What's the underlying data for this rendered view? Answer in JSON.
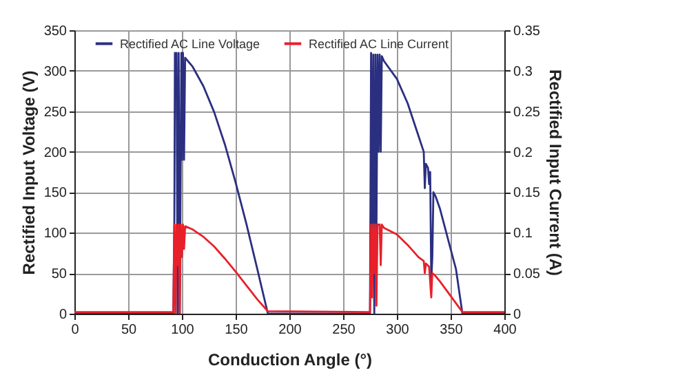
{
  "chart_data": {
    "type": "line",
    "xlabel": "Conduction Angle (°)",
    "ylabel": "Rectified Input Voltage (V)",
    "y2label": "Rectified Input Current (A)",
    "xlim": [
      0,
      400
    ],
    "xticks": [
      0,
      50,
      100,
      150,
      200,
      250,
      300,
      350,
      400
    ],
    "ylim": [
      0,
      350
    ],
    "yticks": [
      0,
      50,
      100,
      150,
      200,
      250,
      300,
      350
    ],
    "y2lim": [
      0,
      0.35
    ],
    "y2ticks": [
      0,
      0.05,
      0.1,
      0.15,
      0.2,
      0.25,
      0.3,
      0.35
    ],
    "grid": true,
    "legend": "top",
    "marker": "none",
    "line_style": "solid",
    "series": [
      {
        "name": "Rectified AC Line Voltage",
        "color": "#2b2f80",
        "x": [
          0,
          92,
          93,
          93.5,
          94,
          95,
          96,
          97,
          98,
          99.5,
          100,
          101,
          102,
          103,
          110,
          120,
          130,
          140,
          150,
          160,
          170,
          180,
          275,
          276,
          277,
          278,
          279,
          280,
          281,
          282,
          283,
          284,
          285,
          286,
          288,
          300,
          310,
          320,
          325,
          326,
          327,
          329,
          330,
          331,
          332,
          333,
          334,
          336,
          340,
          350,
          355,
          361,
          400
        ],
        "values": [
          0,
          0,
          120,
          322,
          280,
          322,
          0,
          322,
          0,
          322,
          190,
          322,
          190,
          316,
          305,
          281,
          249,
          209,
          162,
          111,
          56,
          0,
          0,
          322,
          100,
          320,
          0,
          320,
          100,
          320,
          200,
          320,
          200,
          318,
          312,
          290,
          260,
          220,
          200,
          155,
          185,
          180,
          160,
          175,
          40,
          70,
          150,
          145,
          130,
          80,
          55,
          0,
          0
        ]
      },
      {
        "name": "Rectified AC Line Current",
        "color": "#e8202a",
        "axis": "y2",
        "x": [
          0,
          92,
          93,
          94,
          95,
          96,
          97,
          98,
          99,
          100,
          101,
          102,
          103,
          110,
          120,
          130,
          140,
          150,
          160,
          170,
          180,
          275,
          276,
          277,
          278,
          279,
          280,
          281,
          282,
          284,
          285,
          286,
          288,
          300,
          310,
          320,
          325,
          326,
          327,
          330,
          332,
          333,
          335,
          340,
          350,
          361,
          400
        ],
        "values": [
          0.002,
          0.002,
          0.11,
          0,
          0.11,
          0.06,
          0.11,
          0,
          0.11,
          0.07,
          0.11,
          0.08,
          0.108,
          0.104,
          0.095,
          0.083,
          0.068,
          0.052,
          0.035,
          0.018,
          0.003,
          0.002,
          0.11,
          0.02,
          0.11,
          0.05,
          0.11,
          0.01,
          0.11,
          0.11,
          0.06,
          0.11,
          0.106,
          0.098,
          0.085,
          0.07,
          0.065,
          0.05,
          0.062,
          0.058,
          0.02,
          0.05,
          0.048,
          0.04,
          0.022,
          0.002,
          0.002
        ]
      }
    ]
  }
}
